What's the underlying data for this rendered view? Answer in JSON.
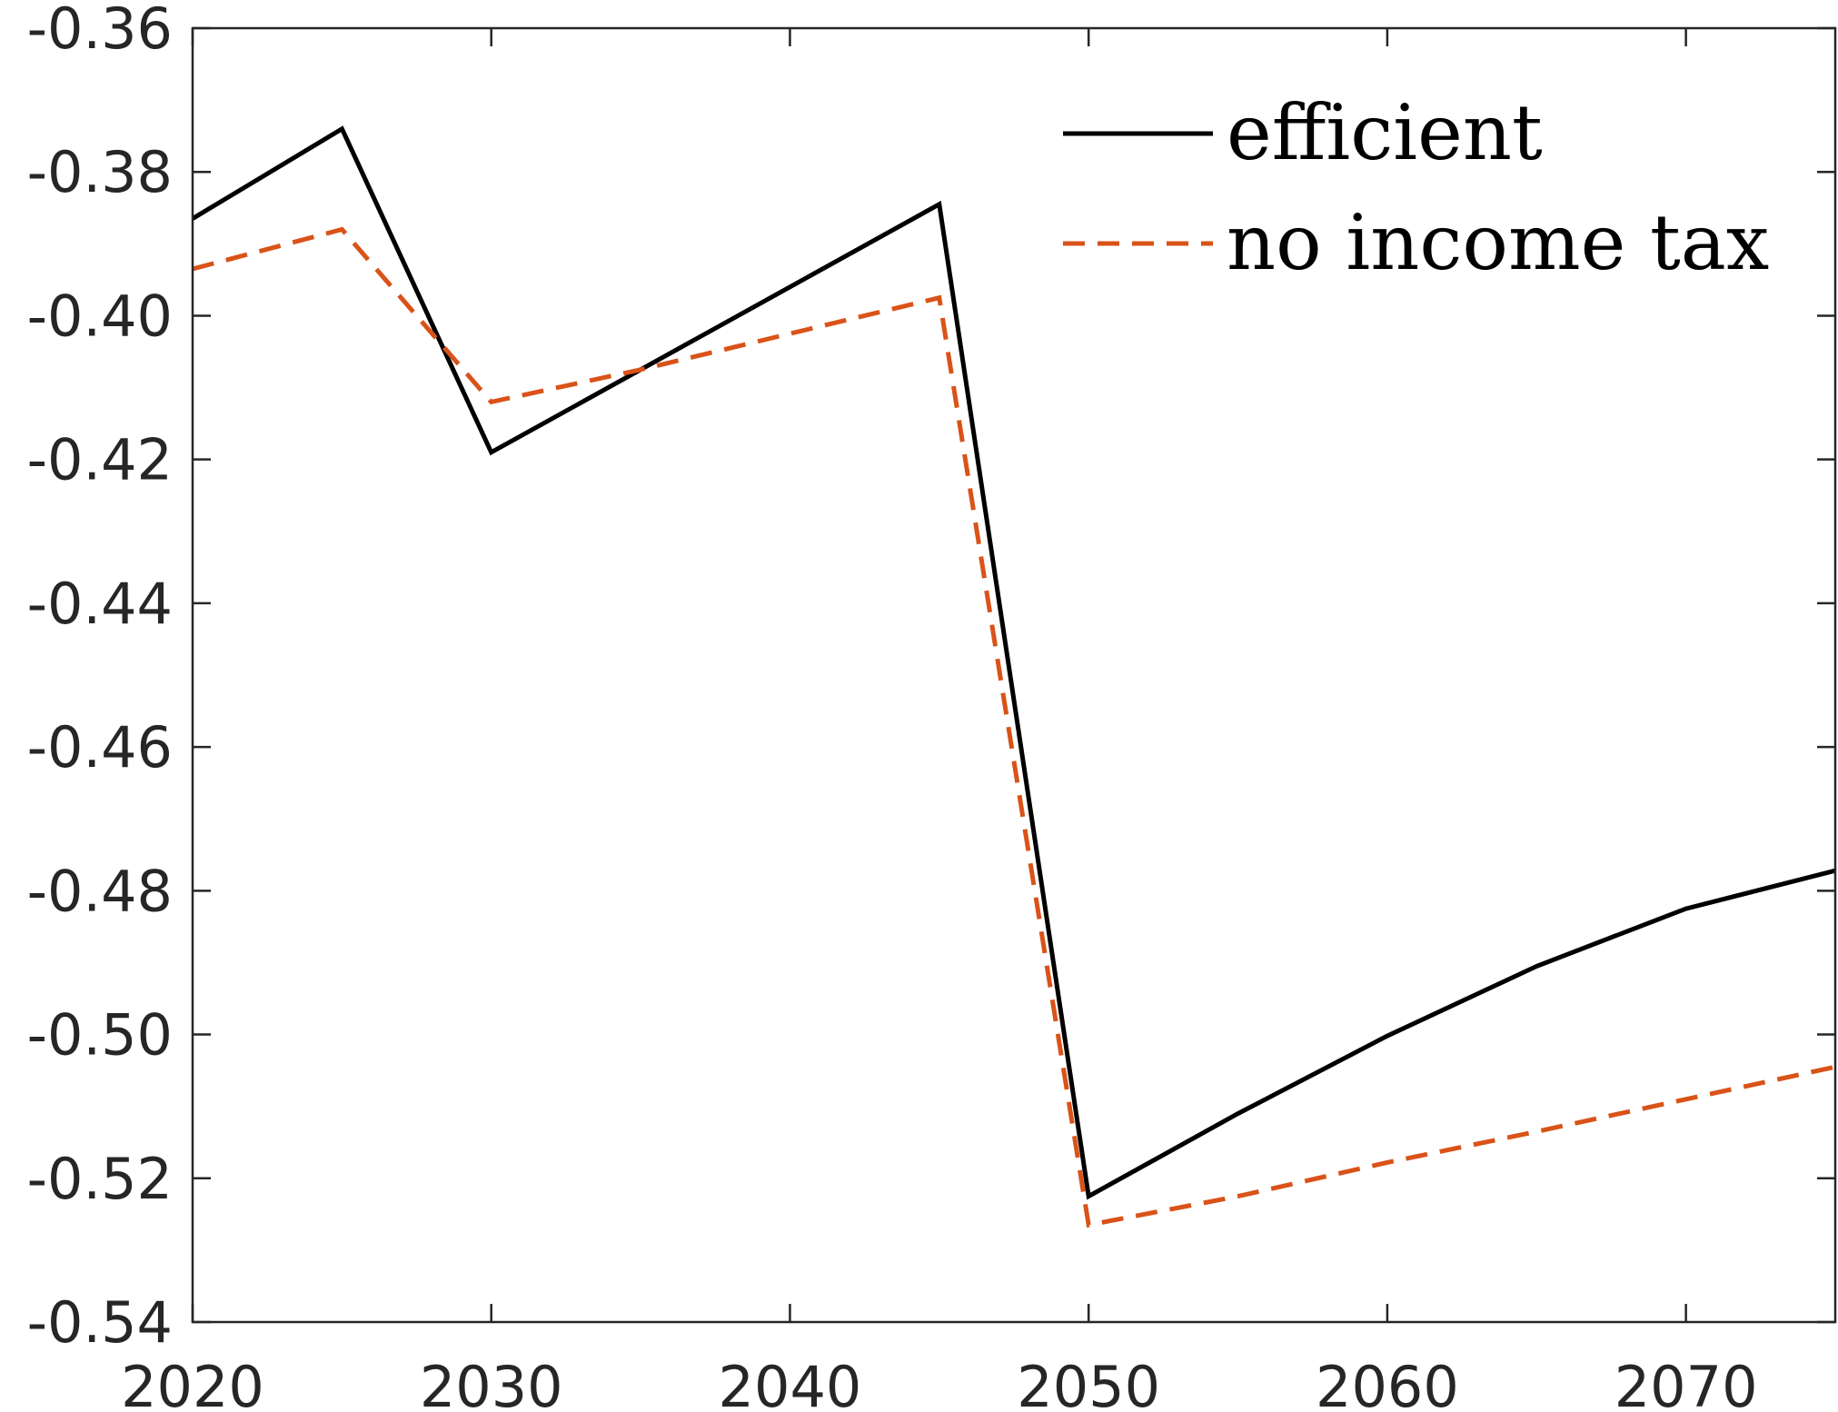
{
  "chart_data": {
    "type": "line",
    "title": "",
    "xlabel": "",
    "ylabel": "",
    "xlim": [
      2020,
      2075
    ],
    "ylim": [
      -0.54,
      -0.36
    ],
    "x_ticks": [
      2020,
      2030,
      2040,
      2050,
      2060,
      2070
    ],
    "x_tick_labels": [
      "2020",
      "2030",
      "2040",
      "2050",
      "2060",
      "2070"
    ],
    "y_ticks": [
      -0.36,
      -0.38,
      -0.4,
      -0.42,
      -0.44,
      -0.46,
      -0.48,
      -0.5,
      -0.52,
      -0.54
    ],
    "y_tick_labels": [
      "-0.36",
      "-0.38",
      "-0.40",
      "-0.42",
      "-0.44",
      "-0.46",
      "-0.48",
      "-0.50",
      "-0.52",
      "-0.54"
    ],
    "grid": false,
    "legend_position": "top-right",
    "x": [
      2020,
      2025,
      2030,
      2035,
      2040,
      2045,
      2050,
      2055,
      2060,
      2065,
      2070,
      2075
    ],
    "series": [
      {
        "name": "efficient",
        "color": "#000000",
        "dash": "solid",
        "values": [
          -0.3865,
          -0.374,
          -0.419,
          -0.4075,
          -0.396,
          -0.3845,
          -0.5225,
          -0.511,
          -0.5002,
          -0.4905,
          -0.4825,
          -0.4772
        ]
      },
      {
        "name": "no income tax",
        "color": "#D95319",
        "dash": "dashed",
        "values": [
          -0.3935,
          -0.388,
          -0.412,
          -0.4075,
          -0.4025,
          -0.3975,
          -0.5265,
          -0.5225,
          -0.5178,
          -0.5135,
          -0.509,
          -0.5045
        ]
      }
    ]
  }
}
